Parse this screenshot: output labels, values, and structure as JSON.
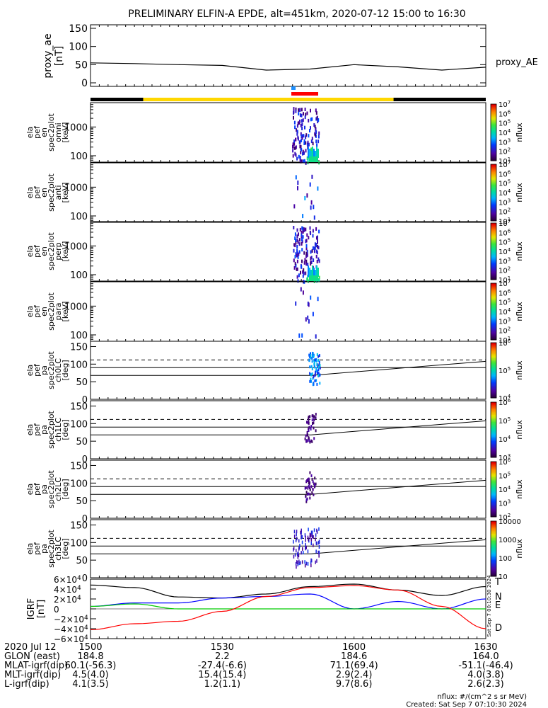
{
  "title": "PRELIMINARY ELFIN-A EPDE, alt=451km, 2020-07-12 15:00 to 16:30",
  "colors": {
    "axes": "#000000",
    "trace": "#000000",
    "dashed": "#000000",
    "science_zone_bar": "#ffd700",
    "outside_bar": "#000000",
    "red_bar": "#ff0000",
    "blue_marker": "#1e90ff",
    "b_north": "#0000ff",
    "b_east": "#00cc00",
    "b_down": "#ff0000",
    "b_total": "#000000"
  },
  "panels": {
    "proxy_ae": {
      "ylabel_lines": [
        "proxy_ae",
        "[nT]"
      ],
      "yticks": [
        "150",
        "100",
        "50",
        "0"
      ],
      "ylim": [
        0,
        150
      ],
      "legend": "proxy_AE"
    },
    "spectra": [
      {
        "ylabel_lines": [
          "ela",
          "pef",
          "en",
          "spec2plot",
          "omni",
          "[keV]"
        ],
        "yticks": [
          "1000",
          "100"
        ],
        "cb_ticks": [
          "10^7",
          "10^6",
          "10^5",
          "10^4",
          "10^3",
          "10^2",
          "10^1"
        ],
        "cb_label": "nflux"
      },
      {
        "ylabel_lines": [
          "ela",
          "pef",
          "en",
          "spec2plot",
          "anti",
          "[keV]"
        ],
        "yticks": [
          "1000",
          "100"
        ],
        "cb_ticks": [
          "10^7",
          "10^6",
          "10^5",
          "10^4",
          "10^3",
          "10^2",
          "10^1"
        ],
        "cb_label": "nflux"
      },
      {
        "ylabel_lines": [
          "ela",
          "pef",
          "en",
          "spec2plot",
          "perp",
          "[keV]"
        ],
        "yticks": [
          "1000",
          "100"
        ],
        "cb_ticks": [
          "10^7",
          "10^6",
          "10^5",
          "10^4",
          "10^3",
          "10^2",
          "10^1"
        ],
        "cb_label": "nflux"
      },
      {
        "ylabel_lines": [
          "ela",
          "pef",
          "en",
          "spec2plot",
          "para",
          "[keV]"
        ],
        "yticks": [
          "1000",
          "100"
        ],
        "cb_ticks": [
          "10^7",
          "10^6",
          "10^5",
          "10^4",
          "10^3",
          "10^2",
          "10^1"
        ],
        "cb_label": "nflux"
      }
    ],
    "pitch": [
      {
        "ylabel_lines": [
          "ela",
          "pef",
          "pa",
          "spec2plot",
          "ch0LC",
          "[deg]"
        ],
        "yticks": [
          "150",
          "100",
          "50",
          "0"
        ],
        "cb_ticks": [
          "10^6",
          "10^5",
          "10^4"
        ],
        "cb_label": "nflux"
      },
      {
        "ylabel_lines": [
          "ela",
          "pef",
          "pa",
          "spec2plot",
          "ch1LC",
          "[deg]"
        ],
        "yticks": [
          "150",
          "100",
          "50",
          "0"
        ],
        "cb_ticks": [
          "10^6",
          "10^5",
          "10^4",
          "10^3"
        ],
        "cb_label": "nflux"
      },
      {
        "ylabel_lines": [
          "ela",
          "pef",
          "pa",
          "spec2plot",
          "ch2LC",
          "[deg]"
        ],
        "yticks": [
          "150",
          "100",
          "50",
          "0"
        ],
        "cb_ticks": [
          "10^6",
          "10^5",
          "10^4",
          "10^3",
          "10^2"
        ],
        "cb_label": "nflux"
      },
      {
        "ylabel_lines": [
          "ela",
          "pef",
          "pa",
          "spec2plot",
          "ch3LC",
          "[deg]"
        ],
        "yticks": [
          "150",
          "100",
          "50",
          "0"
        ],
        "cb_ticks": [
          "10000",
          "1000",
          "100",
          "10"
        ],
        "cb_label": "nflux"
      }
    ],
    "igrf": {
      "ylabel_lines": [
        "IGRF",
        "[nT]"
      ],
      "yticks": [
        "6×10^4",
        "4×10^4",
        "2×10^4",
        "0",
        "−2×10^4",
        "−4×10^4",
        "−6×10^4"
      ],
      "ylim": [
        -60000,
        60000
      ],
      "legend": [
        "T",
        "N",
        "E",
        "D"
      ],
      "side_stamp": "Sat Sep 7 00:10:30 2024"
    }
  },
  "x_axis": {
    "row_labels": [
      "2020 Jul 12",
      "GLON (east)",
      "MLAT-igrf(dip)",
      "MLT-igrf(dip)",
      "L-igrf(dip)"
    ],
    "ticks": [
      {
        "time": "1500",
        "glon": "184.8",
        "mlat": "60.1(-56.3)",
        "mlt": "4.5(4.0)",
        "l": "4.1(3.5)"
      },
      {
        "time": "1530",
        "glon": "2.2",
        "mlat": "-27.4(-6.6)",
        "mlt": "15.4(15.4)",
        "l": "1.2(1.1)"
      },
      {
        "time": "1600",
        "glon": "184.6",
        "mlat": "71.1(69.4)",
        "mlt": "2.9(2.4)",
        "l": "9.7(8.6)"
      },
      {
        "time": "1630",
        "glon": "164.0",
        "mlat": "-51.1(-46.4)",
        "mlt": "4.0(3.8)",
        "l": "2.6(2.3)"
      }
    ]
  },
  "footer": {
    "units": "nflux: #/(cm^2 s sr MeV)",
    "created": "Created: Sat Sep  7 07:10:30 2024"
  },
  "chart_data": {
    "type": "line",
    "title": "PRELIMINARY ELFIN-A EPDE, alt=451km, 2020-07-12 15:00 to 16:30",
    "x": [
      "15:00",
      "15:10",
      "15:20",
      "15:30",
      "15:40",
      "15:50",
      "16:00",
      "16:10",
      "16:20",
      "16:30"
    ],
    "series": [
      {
        "name": "proxy_AE",
        "values": [
          55,
          53,
          50,
          48,
          35,
          38,
          50,
          44,
          35,
          43
        ]
      },
      {
        "name": "T",
        "values": [
          48000,
          43000,
          24000,
          22000,
          30000,
          45000,
          50000,
          38000,
          27000,
          45000
        ]
      },
      {
        "name": "N",
        "values": [
          5000,
          12000,
          12000,
          22000,
          25000,
          30000,
          0,
          15000,
          0,
          20000
        ]
      },
      {
        "name": "E",
        "values": [
          5000,
          10000,
          0,
          0,
          0,
          0,
          0,
          0,
          0,
          0
        ]
      },
      {
        "name": "D",
        "values": [
          -42000,
          -30000,
          -25000,
          -5000,
          25000,
          43000,
          47000,
          38000,
          5000,
          -40000
        ]
      }
    ],
    "ylim_proxy_ae": [
      0,
      150
    ],
    "ylim_igrf": [
      -60000,
      60000
    ],
    "pitch_reference_lines_deg": [
      68,
      90,
      112
    ],
    "energy_range_keV": [
      60,
      7000
    ]
  }
}
